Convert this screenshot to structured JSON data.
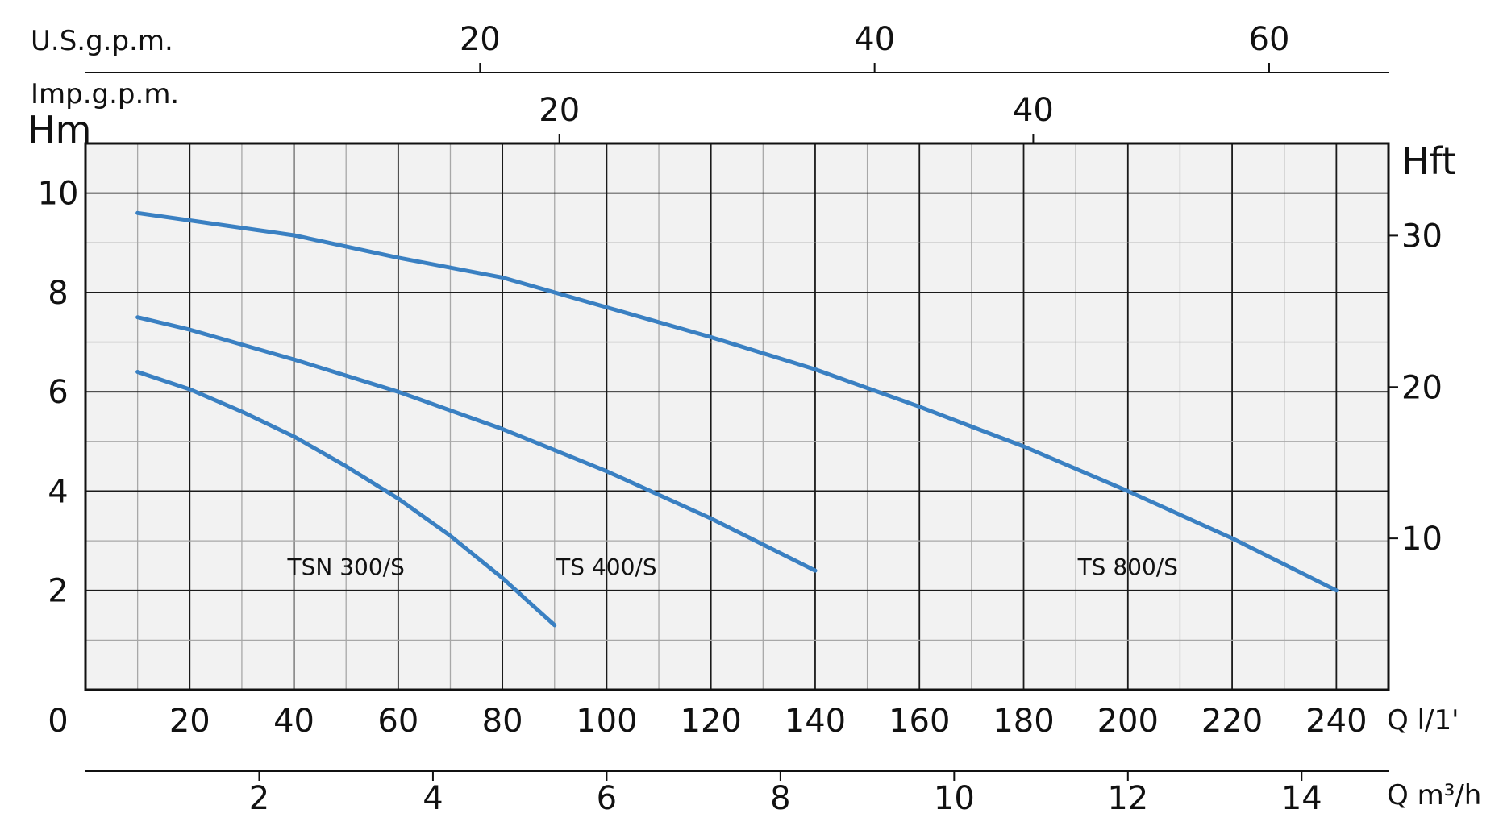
{
  "chart_data": {
    "type": "line",
    "colors": {
      "curve": "#3a80c2",
      "plot_bg": "#f2f2f2",
      "axis": "#111111",
      "grid_major": "#1a1a1a",
      "grid_minor": "#a8a8a8"
    },
    "grid": true,
    "x_axis": {
      "label": "Q l/1'",
      "range": [
        0,
        250
      ],
      "zero_label": "0",
      "ticks": [
        "20",
        "40",
        "60",
        "80",
        "100",
        "120",
        "140",
        "160",
        "180",
        "200",
        "220",
        "240"
      ]
    },
    "x_axis_m3h": {
      "label": "Q m³/h",
      "ticks": [
        "2",
        "4",
        "6",
        "8",
        "10",
        "12",
        "14"
      ]
    },
    "x_axis_usgpm": {
      "label": "U.S.g.p.m.",
      "ticks": [
        "20",
        "40",
        "60"
      ]
    },
    "x_axis_impgpm": {
      "label": "Imp.g.p.m.",
      "ticks": [
        "20",
        "40"
      ]
    },
    "y_axis": {
      "label": "Hm",
      "range": [
        0,
        11
      ],
      "ticks": [
        "2",
        "4",
        "6",
        "8",
        "10"
      ]
    },
    "y_axis_feet": {
      "label": "Hft",
      "ticks": [
        "10",
        "20",
        "30"
      ]
    },
    "series": [
      {
        "name": "TSN 300/S",
        "x": [
          10,
          20,
          30,
          40,
          50,
          60,
          70,
          80,
          90
        ],
        "y": [
          6.4,
          6.05,
          5.6,
          5.1,
          4.5,
          3.85,
          3.1,
          2.25,
          1.3
        ]
      },
      {
        "name": "TS 400/S",
        "x": [
          10,
          20,
          40,
          60,
          80,
          100,
          120,
          140
        ],
        "y": [
          7.5,
          7.25,
          6.65,
          6.0,
          5.25,
          4.4,
          3.45,
          2.4
        ]
      },
      {
        "name": "TS 800/S",
        "x": [
          10,
          20,
          40,
          60,
          80,
          100,
          120,
          140,
          160,
          180,
          200,
          220,
          240
        ],
        "y": [
          9.6,
          9.45,
          9.15,
          8.7,
          8.3,
          7.7,
          7.1,
          6.45,
          5.7,
          4.9,
          4.0,
          3.05,
          2.0
        ]
      }
    ]
  }
}
